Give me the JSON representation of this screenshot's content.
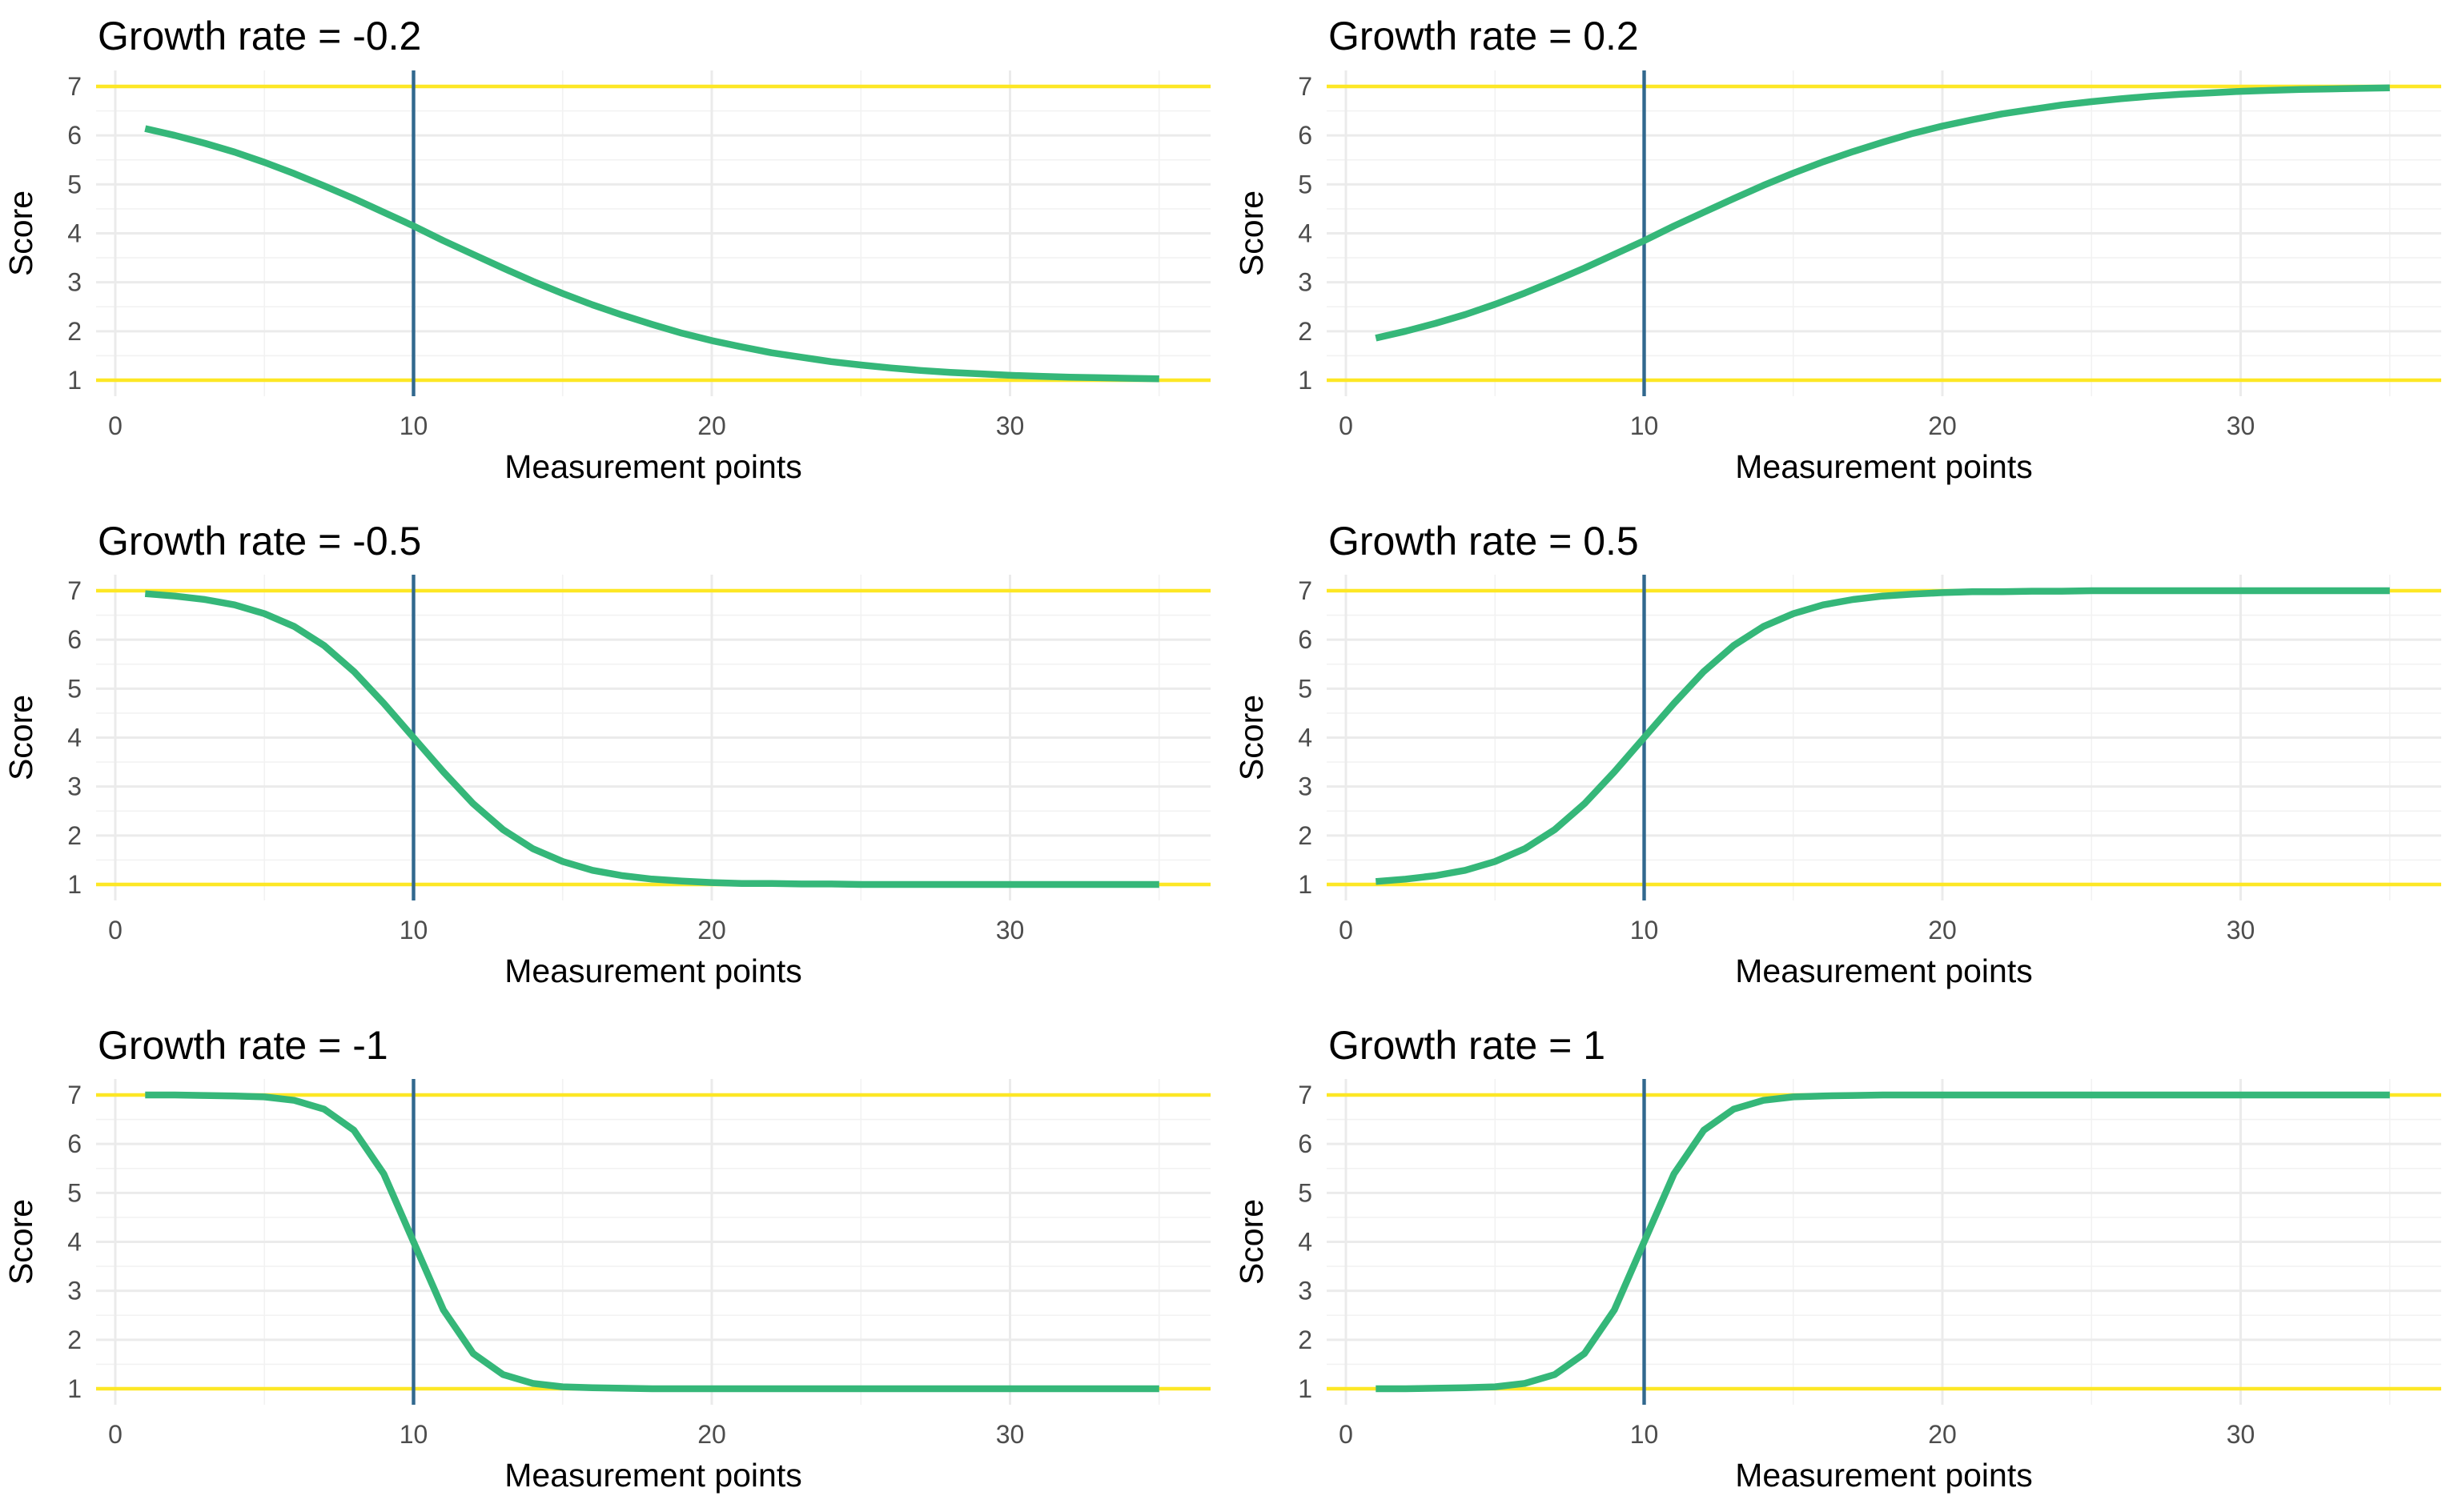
{
  "figure": {
    "colors": {
      "curve": "#35b779",
      "bounds": "#fde725",
      "midpoint_line": "#31688e",
      "grid_major": "#ebebeb",
      "grid_minor": "#f2f2f2",
      "background": "#ffffff"
    }
  },
  "chart_data": [
    {
      "type": "line",
      "title": "Growth rate = -0.2",
      "xlabel": "Measurement points",
      "ylabel": "Score",
      "xlim": [
        0,
        35
      ],
      "ylim": [
        1,
        7
      ],
      "x_ticks": [
        "0",
        "10",
        "20",
        "30"
      ],
      "y_ticks": [
        "1",
        "2",
        "3",
        "4",
        "5",
        "6",
        "7"
      ],
      "reference_lines": {
        "horizontal": [
          1,
          7
        ],
        "vertical": [
          10
        ]
      },
      "grid": true,
      "legend": "none",
      "x": [
        1,
        2,
        3,
        4,
        5,
        6,
        7,
        8,
        9,
        10,
        11,
        12,
        13,
        14,
        15,
        16,
        17,
        18,
        19,
        20,
        21,
        22,
        23,
        24,
        25,
        26,
        27,
        28,
        29,
        30,
        31,
        32,
        33,
        34,
        35
      ],
      "series": [
        {
          "values": [
            6.14,
            6.0,
            5.84,
            5.66,
            5.45,
            5.22,
            4.97,
            4.71,
            4.43,
            4.15,
            3.85,
            3.57,
            3.29,
            3.02,
            2.77,
            2.54,
            2.33,
            2.14,
            1.96,
            1.81,
            1.68,
            1.56,
            1.47,
            1.38,
            1.31,
            1.25,
            1.2,
            1.16,
            1.13,
            1.1,
            1.08,
            1.06,
            1.05,
            1.04,
            1.03
          ]
        }
      ]
    },
    {
      "type": "line",
      "title": "Growth rate = 0.2",
      "xlabel": "Measurement points",
      "ylabel": "Score",
      "xlim": [
        0,
        35
      ],
      "ylim": [
        1,
        7
      ],
      "x_ticks": [
        "0",
        "10",
        "20",
        "30"
      ],
      "y_ticks": [
        "1",
        "2",
        "3",
        "4",
        "5",
        "6",
        "7"
      ],
      "reference_lines": {
        "horizontal": [
          1,
          7
        ],
        "vertical": [
          10
        ]
      },
      "grid": true,
      "legend": "none",
      "x": [
        1,
        2,
        3,
        4,
        5,
        6,
        7,
        8,
        9,
        10,
        11,
        12,
        13,
        14,
        15,
        16,
        17,
        18,
        19,
        20,
        21,
        22,
        23,
        24,
        25,
        26,
        27,
        28,
        29,
        30,
        31,
        32,
        33,
        34,
        35
      ],
      "series": [
        {
          "values": [
            1.86,
            2.0,
            2.16,
            2.34,
            2.55,
            2.78,
            3.03,
            3.29,
            3.57,
            3.85,
            4.15,
            4.43,
            4.71,
            4.98,
            5.23,
            5.46,
            5.67,
            5.86,
            6.04,
            6.19,
            6.32,
            6.44,
            6.53,
            6.62,
            6.69,
            6.75,
            6.8,
            6.84,
            6.87,
            6.9,
            6.92,
            6.94,
            6.95,
            6.96,
            6.97
          ]
        }
      ]
    },
    {
      "type": "line",
      "title": "Growth rate = -0.5",
      "xlabel": "Measurement points",
      "ylabel": "Score",
      "xlim": [
        0,
        35
      ],
      "ylim": [
        1,
        7
      ],
      "x_ticks": [
        "0",
        "10",
        "20",
        "30"
      ],
      "y_ticks": [
        "1",
        "2",
        "3",
        "4",
        "5",
        "6",
        "7"
      ],
      "reference_lines": {
        "horizontal": [
          1,
          7
        ],
        "vertical": [
          10
        ]
      },
      "grid": true,
      "legend": "none",
      "x": [
        1,
        2,
        3,
        4,
        5,
        6,
        7,
        8,
        9,
        10,
        11,
        12,
        13,
        14,
        15,
        16,
        17,
        18,
        19,
        20,
        21,
        22,
        23,
        24,
        25,
        26,
        27,
        28,
        29,
        30,
        31,
        32,
        33,
        34,
        35
      ],
      "series": [
        {
          "values": [
            6.94,
            6.89,
            6.82,
            6.71,
            6.53,
            6.27,
            5.88,
            5.35,
            4.7,
            4.0,
            3.3,
            2.65,
            2.12,
            1.73,
            1.47,
            1.29,
            1.18,
            1.11,
            1.07,
            1.04,
            1.02,
            1.02,
            1.01,
            1.01,
            1.0,
            1.0,
            1.0,
            1.0,
            1.0,
            1.0,
            1.0,
            1.0,
            1.0,
            1.0,
            1.0
          ]
        }
      ]
    },
    {
      "type": "line",
      "title": "Growth rate = 0.5",
      "xlabel": "Measurement points",
      "ylabel": "Score",
      "xlim": [
        0,
        35
      ],
      "ylim": [
        1,
        7
      ],
      "x_ticks": [
        "0",
        "10",
        "20",
        "30"
      ],
      "y_ticks": [
        "1",
        "2",
        "3",
        "4",
        "5",
        "6",
        "7"
      ],
      "reference_lines": {
        "horizontal": [
          1,
          7
        ],
        "vertical": [
          10
        ]
      },
      "grid": true,
      "legend": "none",
      "x": [
        1,
        2,
        3,
        4,
        5,
        6,
        7,
        8,
        9,
        10,
        11,
        12,
        13,
        14,
        15,
        16,
        17,
        18,
        19,
        20,
        21,
        22,
        23,
        24,
        25,
        26,
        27,
        28,
        29,
        30,
        31,
        32,
        33,
        34,
        35
      ],
      "series": [
        {
          "values": [
            1.06,
            1.11,
            1.18,
            1.29,
            1.47,
            1.73,
            2.12,
            2.65,
            3.3,
            4.0,
            4.7,
            5.35,
            5.88,
            6.27,
            6.53,
            6.71,
            6.82,
            6.89,
            6.93,
            6.96,
            6.98,
            6.98,
            6.99,
            6.99,
            7.0,
            7.0,
            7.0,
            7.0,
            7.0,
            7.0,
            7.0,
            7.0,
            7.0,
            7.0,
            7.0
          ]
        }
      ]
    },
    {
      "type": "line",
      "title": "Growth rate = -1",
      "xlabel": "Measurement points",
      "ylabel": "Score",
      "xlim": [
        0,
        35
      ],
      "ylim": [
        1,
        7
      ],
      "x_ticks": [
        "0",
        "10",
        "20",
        "30"
      ],
      "y_ticks": [
        "1",
        "2",
        "3",
        "4",
        "5",
        "6",
        "7"
      ],
      "reference_lines": {
        "horizontal": [
          1,
          7
        ],
        "vertical": [
          10
        ]
      },
      "grid": true,
      "legend": "none",
      "x": [
        1,
        2,
        3,
        4,
        5,
        6,
        7,
        8,
        9,
        10,
        11,
        12,
        13,
        14,
        15,
        16,
        17,
        18,
        19,
        20,
        21,
        22,
        23,
        24,
        25,
        26,
        27,
        28,
        29,
        30,
        31,
        32,
        33,
        34,
        35
      ],
      "series": [
        {
          "values": [
            7.0,
            7.0,
            6.99,
            6.98,
            6.96,
            6.89,
            6.71,
            6.28,
            5.39,
            4.0,
            2.61,
            1.72,
            1.29,
            1.11,
            1.04,
            1.02,
            1.01,
            1.0,
            1.0,
            1.0,
            1.0,
            1.0,
            1.0,
            1.0,
            1.0,
            1.0,
            1.0,
            1.0,
            1.0,
            1.0,
            1.0,
            1.0,
            1.0,
            1.0,
            1.0
          ]
        }
      ]
    },
    {
      "type": "line",
      "title": "Growth rate = 1",
      "xlabel": "Measurement points",
      "ylabel": "Score",
      "xlim": [
        0,
        35
      ],
      "ylim": [
        1,
        7
      ],
      "x_ticks": [
        "0",
        "10",
        "20",
        "30"
      ],
      "y_ticks": [
        "1",
        "2",
        "3",
        "4",
        "5",
        "6",
        "7"
      ],
      "reference_lines": {
        "horizontal": [
          1,
          7
        ],
        "vertical": [
          10
        ]
      },
      "grid": true,
      "legend": "none",
      "x": [
        1,
        2,
        3,
        4,
        5,
        6,
        7,
        8,
        9,
        10,
        11,
        12,
        13,
        14,
        15,
        16,
        17,
        18,
        19,
        20,
        21,
        22,
        23,
        24,
        25,
        26,
        27,
        28,
        29,
        30,
        31,
        32,
        33,
        34,
        35
      ],
      "series": [
        {
          "values": [
            1.0,
            1.0,
            1.01,
            1.02,
            1.04,
            1.11,
            1.29,
            1.72,
            2.61,
            4.0,
            5.39,
            6.28,
            6.71,
            6.89,
            6.96,
            6.98,
            6.99,
            7.0,
            7.0,
            7.0,
            7.0,
            7.0,
            7.0,
            7.0,
            7.0,
            7.0,
            7.0,
            7.0,
            7.0,
            7.0,
            7.0,
            7.0,
            7.0,
            7.0,
            7.0
          ]
        }
      ]
    }
  ]
}
